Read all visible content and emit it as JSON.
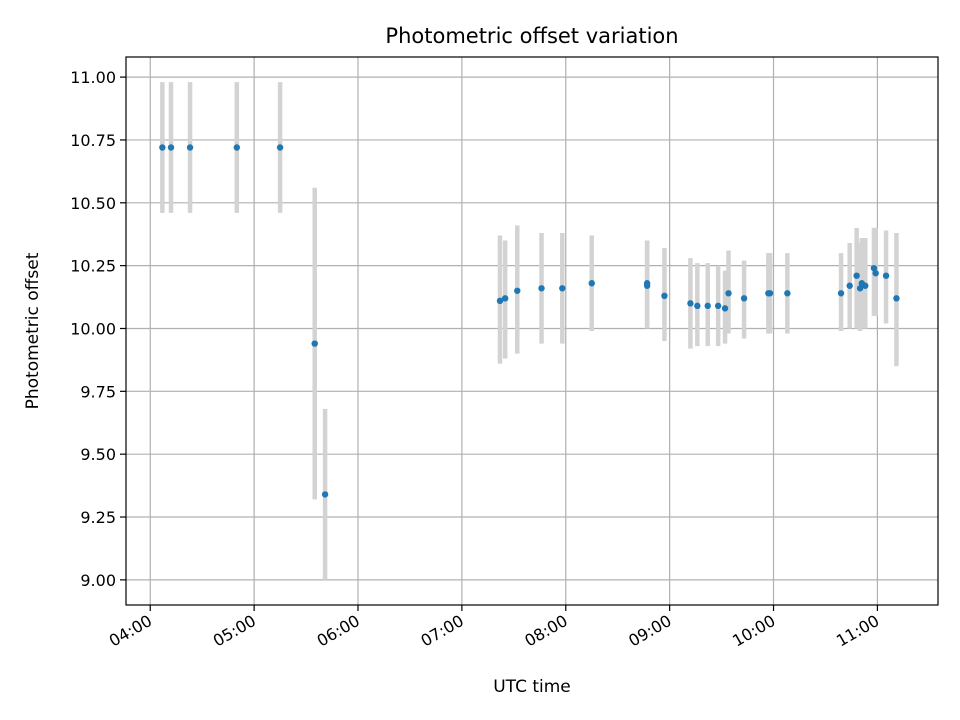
{
  "chart_data": {
    "type": "scatter",
    "title": "Photometric offset variation",
    "xlabel": "UTC time",
    "ylabel": "Photometric offset",
    "x_unit": "time of day (UTC)",
    "xlim": [
      "03:46",
      "11:35"
    ],
    "ylim": [
      8.9,
      11.08
    ],
    "xticks": [
      "04:00",
      "05:00",
      "06:00",
      "07:00",
      "08:00",
      "09:00",
      "10:00",
      "11:00"
    ],
    "yticks": [
      9.0,
      9.25,
      9.5,
      9.75,
      10.0,
      10.25,
      10.5,
      10.75,
      11.0
    ],
    "ytick_labels": [
      "9.00",
      "9.25",
      "9.50",
      "9.75",
      "10.00",
      "10.25",
      "10.50",
      "10.75",
      "11.00"
    ],
    "grid": true,
    "colors": {
      "point": "#1f77b4",
      "errorbar": "#d3d3d3",
      "grid": "#b0b0b0"
    },
    "points": [
      {
        "t": "04:07",
        "y": 10.72,
        "lo": 10.46,
        "hi": 10.98
      },
      {
        "t": "04:12",
        "y": 10.72,
        "lo": 10.46,
        "hi": 10.98
      },
      {
        "t": "04:23",
        "y": 10.72,
        "lo": 10.46,
        "hi": 10.98
      },
      {
        "t": "04:50",
        "y": 10.72,
        "lo": 10.46,
        "hi": 10.98
      },
      {
        "t": "05:15",
        "y": 10.72,
        "lo": 10.46,
        "hi": 10.98
      },
      {
        "t": "05:35",
        "y": 9.94,
        "lo": 9.32,
        "hi": 10.56
      },
      {
        "t": "05:41",
        "y": 9.34,
        "lo": 9.0,
        "hi": 9.68
      },
      {
        "t": "07:22",
        "y": 10.11,
        "lo": 9.86,
        "hi": 10.37
      },
      {
        "t": "07:25",
        "y": 10.12,
        "lo": 9.88,
        "hi": 10.35
      },
      {
        "t": "07:32",
        "y": 10.15,
        "lo": 9.9,
        "hi": 10.41
      },
      {
        "t": "07:46",
        "y": 10.16,
        "lo": 9.94,
        "hi": 10.38
      },
      {
        "t": "07:58",
        "y": 10.16,
        "lo": 9.94,
        "hi": 10.38
      },
      {
        "t": "08:15",
        "y": 10.18,
        "lo": 9.99,
        "hi": 10.37
      },
      {
        "t": "08:47",
        "y": 10.17,
        "lo": 10.0,
        "hi": 10.35
      },
      {
        "t": "08:47",
        "y": 10.18,
        "lo": 10.0,
        "hi": 10.35
      },
      {
        "t": "08:57",
        "y": 10.13,
        "lo": 9.95,
        "hi": 10.32
      },
      {
        "t": "09:12",
        "y": 10.1,
        "lo": 9.92,
        "hi": 10.28
      },
      {
        "t": "09:16",
        "y": 10.09,
        "lo": 9.93,
        "hi": 10.26
      },
      {
        "t": "09:22",
        "y": 10.09,
        "lo": 9.93,
        "hi": 10.26
      },
      {
        "t": "09:28",
        "y": 10.09,
        "lo": 9.93,
        "hi": 10.25
      },
      {
        "t": "09:32",
        "y": 10.08,
        "lo": 9.94,
        "hi": 10.23
      },
      {
        "t": "09:34",
        "y": 10.14,
        "lo": 9.98,
        "hi": 10.31
      },
      {
        "t": "09:43",
        "y": 10.12,
        "lo": 9.96,
        "hi": 10.27
      },
      {
        "t": "09:57",
        "y": 10.14,
        "lo": 9.98,
        "hi": 10.3
      },
      {
        "t": "09:58",
        "y": 10.14,
        "lo": 9.98,
        "hi": 10.3
      },
      {
        "t": "10:08",
        "y": 10.14,
        "lo": 9.98,
        "hi": 10.3
      },
      {
        "t": "10:39",
        "y": 10.14,
        "lo": 9.99,
        "hi": 10.3
      },
      {
        "t": "10:44",
        "y": 10.17,
        "lo": 10.0,
        "hi": 10.34
      },
      {
        "t": "10:48",
        "y": 10.21,
        "lo": 10.0,
        "hi": 10.4
      },
      {
        "t": "10:50",
        "y": 10.16,
        "lo": 9.99,
        "hi": 10.34
      },
      {
        "t": "10:51",
        "y": 10.18,
        "lo": 10.0,
        "hi": 10.36
      },
      {
        "t": "10:53",
        "y": 10.17,
        "lo": 10.0,
        "hi": 10.36
      },
      {
        "t": "10:58",
        "y": 10.24,
        "lo": 10.05,
        "hi": 10.4
      },
      {
        "t": "10:59",
        "y": 10.22,
        "lo": 10.05,
        "hi": 10.4
      },
      {
        "t": "11:05",
        "y": 10.21,
        "lo": 10.02,
        "hi": 10.39
      },
      {
        "t": "11:11",
        "y": 10.12,
        "lo": 9.85,
        "hi": 10.38
      }
    ]
  }
}
